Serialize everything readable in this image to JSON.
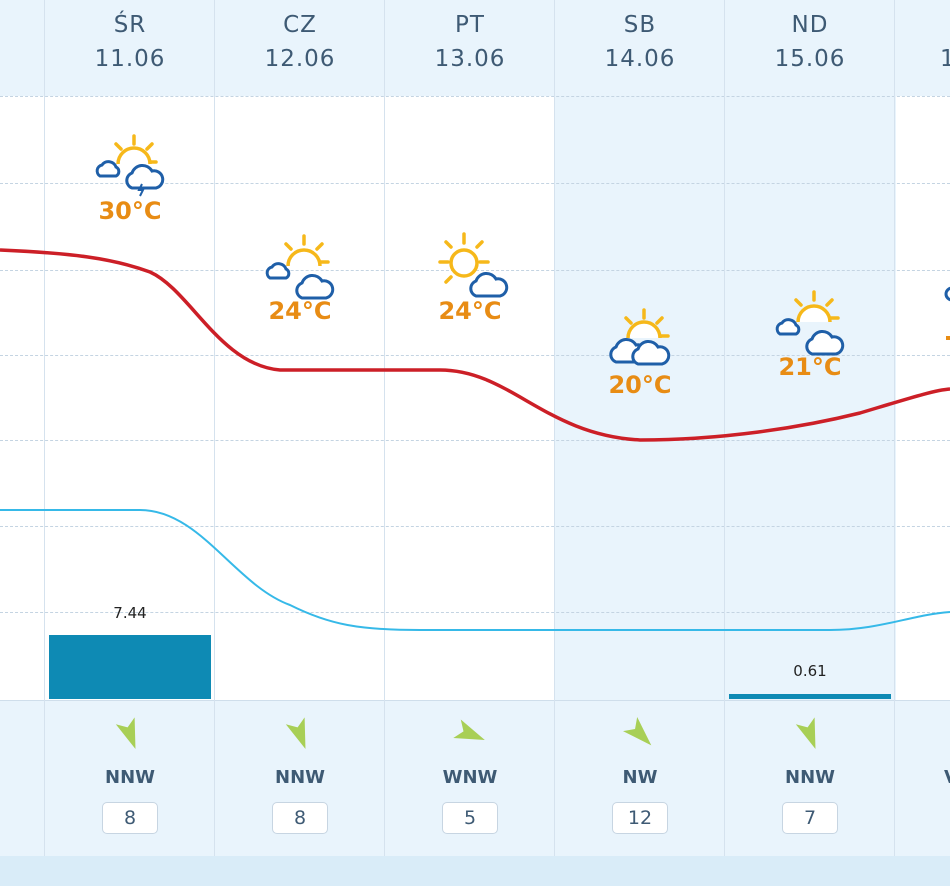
{
  "days": [
    {
      "dow": "ŚR",
      "date": "11.06",
      "weather_icon": "sun-cloud-storm-icon",
      "temperature": "30°C",
      "precipitation": 7.44,
      "precipitation_label": "7.44",
      "wind_dir": "NNW",
      "wind_speed": "8"
    },
    {
      "dow": "CZ",
      "date": "12.06",
      "weather_icon": "sun-cloud-icon",
      "temperature": "24°C",
      "precipitation": 0,
      "precipitation_label": "",
      "wind_dir": "NNW",
      "wind_speed": "8"
    },
    {
      "dow": "PT",
      "date": "13.06",
      "weather_icon": "sun-cloud-icon",
      "temperature": "24°C",
      "precipitation": 0,
      "precipitation_label": "",
      "wind_dir": "WNW",
      "wind_speed": "5"
    },
    {
      "dow": "SB",
      "date": "14.06",
      "weather_icon": "sun-clouds-icon",
      "temperature": "20°C",
      "precipitation": 0,
      "precipitation_label": "",
      "wind_dir": "NW",
      "wind_speed": "12"
    },
    {
      "dow": "ND",
      "date": "15.06",
      "weather_icon": "sun-cloud-icon",
      "temperature": "21°C",
      "precipitation": 0.61,
      "precipitation_label": "0.61",
      "wind_dir": "NNW",
      "wind_speed": "7"
    }
  ],
  "partial_next_day": {
    "date_fragment": "1",
    "wind_dir_fragment": "V"
  },
  "colors": {
    "temperature_line": "#cc1f27",
    "precipitation_line": "#36b9e8",
    "precipitation_bar": "#0e8ab4",
    "temperature_text": "#e88c14",
    "weekend_shade": "#e9f4fc",
    "wind_arrow": "#a8cf56"
  }
}
